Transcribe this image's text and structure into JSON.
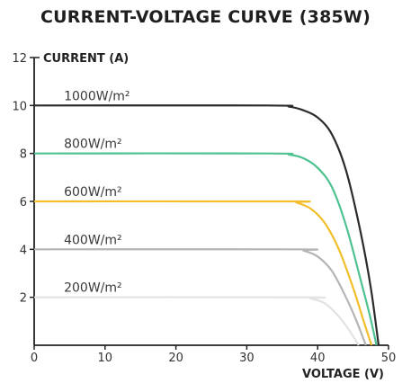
{
  "chart_data": {
    "type": "line",
    "title": "CURRENT-VOLTAGE CURVE (385W)",
    "xlabel": "VOLTAGE (V)",
    "ylabel": "CURRENT (A)",
    "xlim": [
      0,
      50
    ],
    "ylim": [
      0,
      12
    ],
    "xticks": [
      0,
      10,
      20,
      30,
      40,
      50
    ],
    "yticks": [
      2,
      4,
      6,
      8,
      10,
      12
    ],
    "grid": false,
    "series": [
      {
        "name": "1000W/m²",
        "color": "#2b2b2b",
        "x": [
          0,
          33,
          36,
          38,
          40,
          42,
          44,
          46,
          47.5,
          48.6
        ],
        "y": [
          10.0,
          10.0,
          9.95,
          9.8,
          9.5,
          8.8,
          7.3,
          4.8,
          2.4,
          0
        ]
      },
      {
        "name": "800W/m²",
        "color": "#4ec28f",
        "x": [
          0,
          33,
          36,
          38,
          40,
          42,
          44,
          46,
          47.4,
          48.3
        ],
        "y": [
          8.0,
          8.0,
          7.95,
          7.8,
          7.4,
          6.6,
          5.0,
          2.8,
          1.2,
          0
        ]
      },
      {
        "name": "600W/m²",
        "color": "#f2be2a",
        "x": [
          0,
          36,
          37,
          39,
          41,
          43,
          45,
          46.5,
          47.6
        ],
        "y": [
          6.0,
          6.0,
          5.95,
          5.7,
          5.1,
          4.0,
          2.4,
          1.0,
          0
        ]
      },
      {
        "name": "400W/m²",
        "color": "#b5b5b5",
        "x": [
          0,
          37,
          38,
          40,
          42,
          44,
          45.5,
          46.8
        ],
        "y": [
          4.0,
          4.0,
          3.95,
          3.7,
          3.1,
          2.0,
          1.0,
          0
        ]
      },
      {
        "name": "200W/m²",
        "color": "#e3e3e3",
        "x": [
          0,
          38,
          39,
          41,
          43,
          44.5,
          45.8
        ],
        "y": [
          2.0,
          2.0,
          1.95,
          1.75,
          1.2,
          0.6,
          0
        ]
      }
    ]
  }
}
